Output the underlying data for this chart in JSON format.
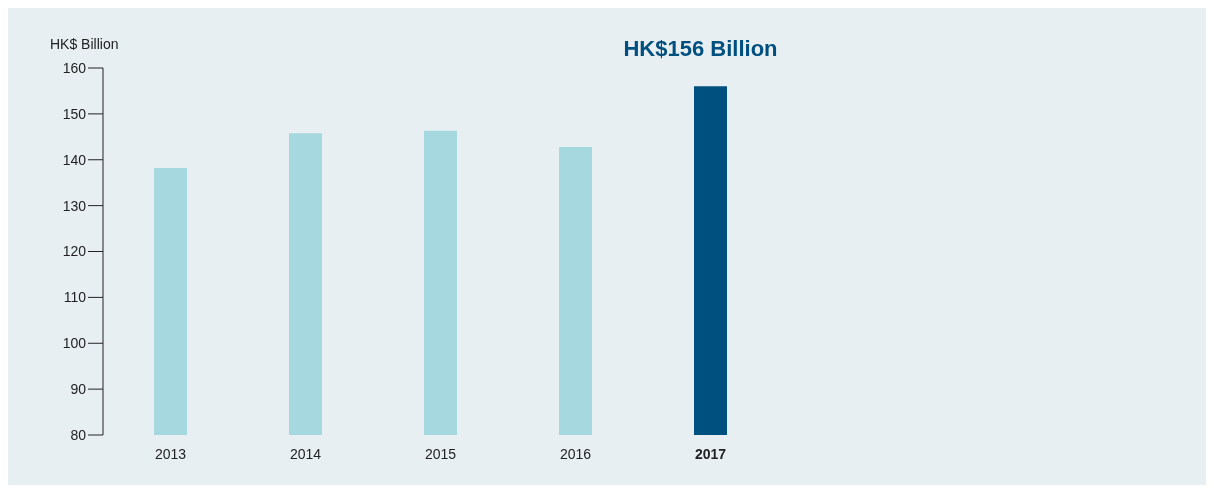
{
  "chart_data": {
    "type": "bar",
    "ylabel": "HK$ Billion",
    "categories": [
      "2013",
      "2014",
      "2015",
      "2016",
      "2017"
    ],
    "values": [
      138.2,
      145.8,
      146.3,
      142.8,
      156
    ],
    "colors": [
      "#a6d8df",
      "#a6d8df",
      "#a6d8df",
      "#a6d8df",
      "#00507f"
    ],
    "ylim": [
      80,
      160
    ],
    "yticks": [
      80,
      90,
      100,
      110,
      120,
      130,
      140,
      150,
      160
    ],
    "grid": false,
    "annotations": [
      {
        "text": "HK$156 Billion",
        "x": "2017",
        "y": 156
      }
    ]
  }
}
